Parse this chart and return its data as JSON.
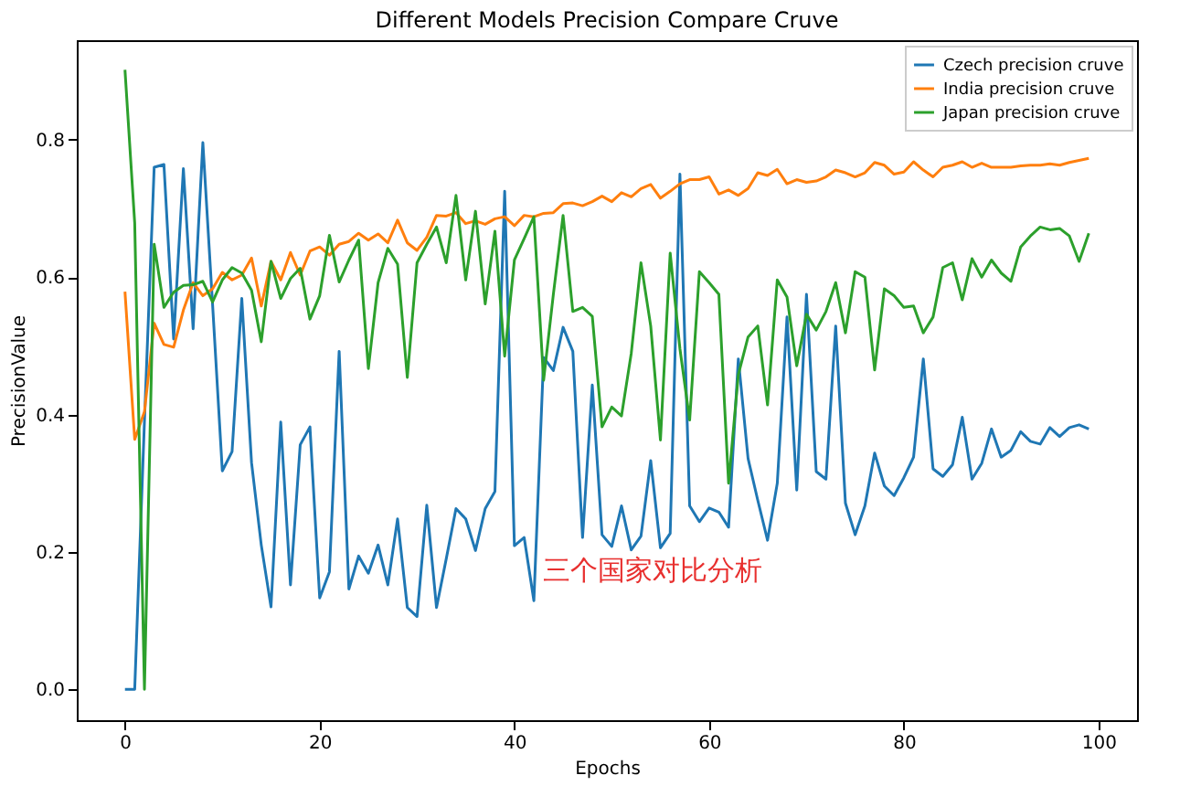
{
  "chart_data": {
    "type": "line",
    "title": "Different Models Precision Compare Cruve",
    "xlabel": "Epochs",
    "ylabel": "PrecisionValue",
    "x": [
      0,
      1,
      2,
      3,
      4,
      5,
      6,
      7,
      8,
      9,
      10,
      11,
      12,
      13,
      14,
      15,
      16,
      17,
      18,
      19,
      20,
      21,
      22,
      23,
      24,
      25,
      26,
      27,
      28,
      29,
      30,
      31,
      32,
      33,
      34,
      35,
      36,
      37,
      38,
      39,
      40,
      41,
      42,
      43,
      44,
      45,
      46,
      47,
      48,
      49,
      50,
      51,
      52,
      53,
      54,
      55,
      56,
      57,
      58,
      59,
      60,
      61,
      62,
      63,
      64,
      65,
      66,
      67,
      68,
      69,
      70,
      71,
      72,
      73,
      74,
      75,
      76,
      77,
      78,
      79,
      80,
      81,
      82,
      83,
      84,
      85,
      86,
      87,
      88,
      89,
      90,
      91,
      92,
      93,
      94,
      95,
      96,
      97,
      98,
      99
    ],
    "series": [
      {
        "name": "Czech precision cruve",
        "color": "#1f77b4",
        "values": [
          0,
          0,
          0.39,
          0.76,
          0.764,
          0.51,
          0.758,
          0.525,
          0.796,
          0.56,
          0.318,
          0.346,
          0.569,
          0.33,
          0.21,
          0.12,
          0.389,
          0.152,
          0.356,
          0.382,
          0.133,
          0.171,
          0.492,
          0.146,
          0.194,
          0.169,
          0.21,
          0.152,
          0.248,
          0.119,
          0.106,
          0.268,
          0.119,
          0.19,
          0.263,
          0.248,
          0.202,
          0.263,
          0.288,
          0.725,
          0.209,
          0.221,
          0.129,
          0.483,
          0.464,
          0.527,
          0.492,
          0.221,
          0.443,
          0.225,
          0.208,
          0.267,
          0.203,
          0.223,
          0.333,
          0.206,
          0.227,
          0.75,
          0.267,
          0.244,
          0.264,
          0.258,
          0.236,
          0.481,
          0.336,
          0.275,
          0.217,
          0.3,
          0.542,
          0.29,
          0.575,
          0.317,
          0.306,
          0.529,
          0.271,
          0.225,
          0.267,
          0.344,
          0.296,
          0.282,
          0.308,
          0.338,
          0.481,
          0.321,
          0.31,
          0.327,
          0.396,
          0.306,
          0.329,
          0.379,
          0.338,
          0.348,
          0.375,
          0.361,
          0.357,
          0.381,
          0.368,
          0.381,
          0.385,
          0.379
        ]
      },
      {
        "name": "India precision cruve",
        "color": "#ff7f0e",
        "values": [
          0.579,
          0.364,
          0.404,
          0.533,
          0.502,
          0.498,
          0.552,
          0.592,
          0.573,
          0.583,
          0.607,
          0.596,
          0.603,
          0.628,
          0.558,
          0.623,
          0.596,
          0.636,
          0.603,
          0.638,
          0.644,
          0.632,
          0.648,
          0.652,
          0.664,
          0.654,
          0.663,
          0.65,
          0.683,
          0.65,
          0.639,
          0.658,
          0.69,
          0.689,
          0.694,
          0.678,
          0.682,
          0.677,
          0.685,
          0.688,
          0.675,
          0.69,
          0.688,
          0.693,
          0.694,
          0.707,
          0.708,
          0.704,
          0.71,
          0.718,
          0.71,
          0.723,
          0.717,
          0.729,
          0.735,
          0.715,
          0.725,
          0.736,
          0.742,
          0.742,
          0.746,
          0.721,
          0.727,
          0.719,
          0.729,
          0.752,
          0.748,
          0.757,
          0.736,
          0.742,
          0.738,
          0.74,
          0.746,
          0.756,
          0.752,
          0.746,
          0.752,
          0.767,
          0.763,
          0.75,
          0.753,
          0.768,
          0.756,
          0.746,
          0.76,
          0.763,
          0.768,
          0.76,
          0.766,
          0.76,
          0.76,
          0.76,
          0.762,
          0.763,
          0.763,
          0.765,
          0.763,
          0.767,
          0.77,
          0.773
        ]
      },
      {
        "name": "Japan precision cruve",
        "color": "#2ca02c",
        "values": [
          0.902,
          0.679,
          0,
          0.648,
          0.556,
          0.578,
          0.588,
          0.589,
          0.594,
          0.564,
          0.596,
          0.614,
          0.606,
          0.581,
          0.506,
          0.623,
          0.569,
          0.598,
          0.613,
          0.539,
          0.573,
          0.661,
          0.593,
          0.625,
          0.654,
          0.467,
          0.592,
          0.642,
          0.619,
          0.454,
          0.621,
          0.648,
          0.673,
          0.621,
          0.719,
          0.596,
          0.696,
          0.561,
          0.667,
          0.485,
          0.625,
          0.656,
          0.688,
          0.45,
          0.575,
          0.69,
          0.55,
          0.556,
          0.543,
          0.382,
          0.411,
          0.398,
          0.489,
          0.621,
          0.529,
          0.363,
          0.635,
          0.496,
          0.392,
          0.608,
          0.592,
          0.575,
          0.3,
          0.458,
          0.513,
          0.529,
          0.414,
          0.596,
          0.571,
          0.471,
          0.546,
          0.523,
          0.55,
          0.592,
          0.519,
          0.608,
          0.6,
          0.465,
          0.583,
          0.573,
          0.556,
          0.558,
          0.519,
          0.542,
          0.614,
          0.621,
          0.567,
          0.627,
          0.6,
          0.625,
          0.606,
          0.594,
          0.644,
          0.66,
          0.673,
          0.669,
          0.671,
          0.66,
          0.623,
          0.664
        ]
      }
    ],
    "xlim": [
      -4.95,
      103.95
    ],
    "xticks": [
      0,
      20,
      40,
      60,
      80,
      100
    ],
    "ylim": [
      -0.045,
      0.945
    ],
    "yticks": [
      {
        "value": 0,
        "label": "0.0"
      },
      {
        "value": 0.2,
        "label": "0.2"
      },
      {
        "value": 0.4,
        "label": "0.4"
      },
      {
        "value": 0.6,
        "label": "0.6"
      },
      {
        "value": 0.8,
        "label": "0.8"
      }
    ],
    "grid": false,
    "legend": "top right",
    "line_style": "solid",
    "marker": "none",
    "annotations": [
      "三个国家对比分析"
    ]
  }
}
